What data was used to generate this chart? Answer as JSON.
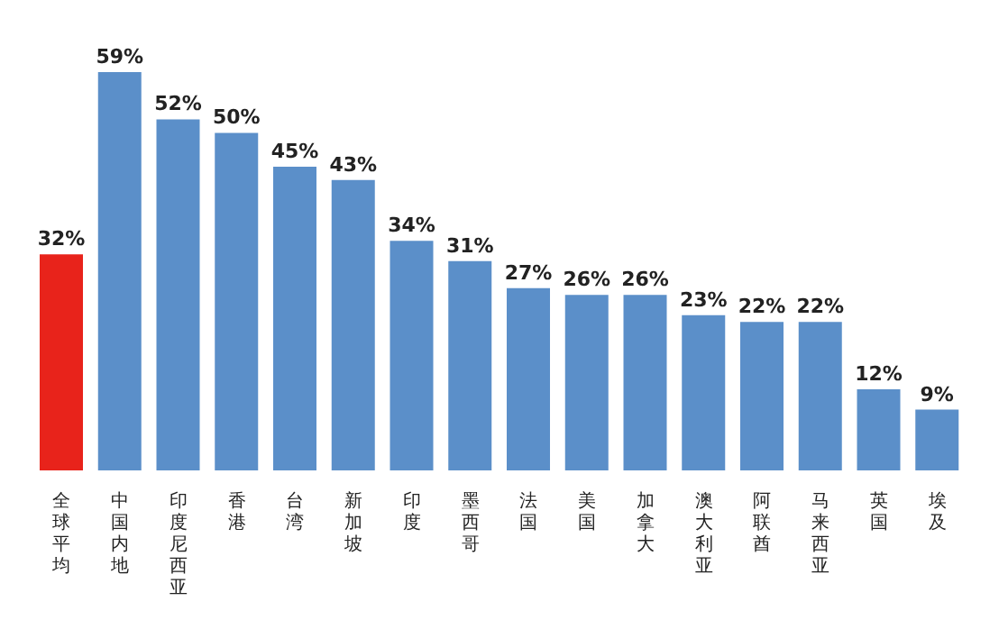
{
  "chart_data": {
    "type": "bar",
    "categories": [
      "全球平均",
      "中国内地",
      "印度尼西亚",
      "香港",
      "台湾",
      "新加坡",
      "印度",
      "墨西哥",
      "法国",
      "美国",
      "加拿大",
      "澳大利亚",
      "阿联酋",
      "马来西亚",
      "英国",
      "埃及"
    ],
    "values": [
      32,
      59,
      52,
      50,
      45,
      43,
      34,
      31,
      27,
      26,
      26,
      23,
      22,
      22,
      12,
      9
    ],
    "value_labels": [
      "32%",
      "59%",
      "52%",
      "50%",
      "45%",
      "43%",
      "34%",
      "31%",
      "27%",
      "26%",
      "26%",
      "23%",
      "22%",
      "22%",
      "12%",
      "9%"
    ],
    "colors": [
      "#e8231b",
      "#5b8fc9",
      "#5b8fc9",
      "#5b8fc9",
      "#5b8fc9",
      "#5b8fc9",
      "#5b8fc9",
      "#5b8fc9",
      "#5b8fc9",
      "#5b8fc9",
      "#5b8fc9",
      "#5b8fc9",
      "#5b8fc9",
      "#5b8fc9",
      "#5b8fc9",
      "#5b8fc9"
    ]
  }
}
